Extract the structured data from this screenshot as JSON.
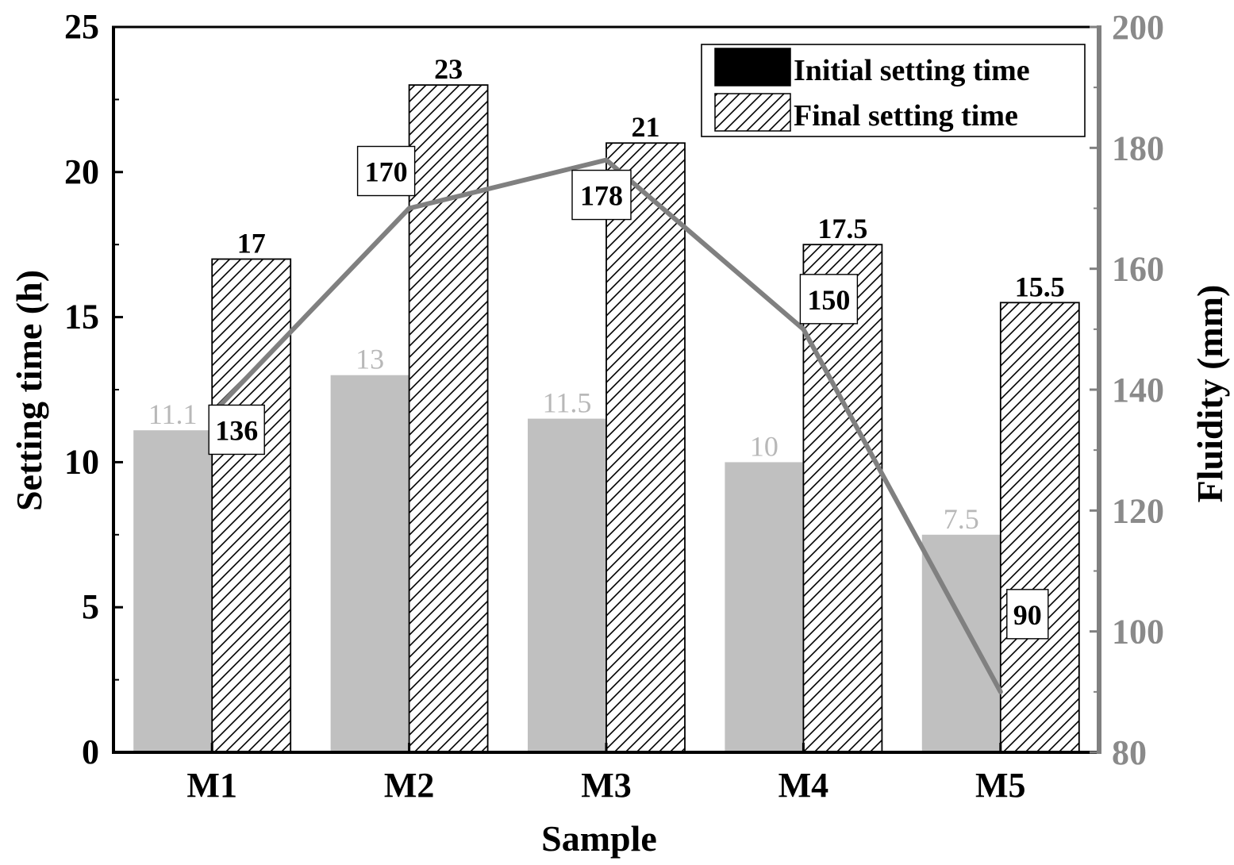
{
  "chart_data": {
    "type": "bar",
    "xlabel": "Sample",
    "ylabel": "Setting time (h)",
    "y2label": "Fluidity (mm)",
    "categories": [
      "M1",
      "M2",
      "M3",
      "M4",
      "M5"
    ],
    "ylim": [
      0,
      25
    ],
    "y2lim": [
      80,
      200
    ],
    "yticks": [
      0,
      5,
      10,
      15,
      20,
      25
    ],
    "y2ticks": [
      80,
      100,
      120,
      140,
      160,
      180,
      200
    ],
    "legend_position": "top-right",
    "series": [
      {
        "name": "Initial setting time",
        "kind": "bar",
        "axis": "left",
        "values": [
          11.1,
          13,
          11.5,
          10,
          7.5
        ],
        "labels": [
          "11.1",
          "13",
          "11.5",
          "10",
          "7.5"
        ],
        "fill": "#c0c0c0",
        "legend_swatch": "#000000",
        "label_color": "#b8b8b8"
      },
      {
        "name": "Final setting time",
        "kind": "bar",
        "axis": "left",
        "pattern": "hatched",
        "values": [
          17,
          23,
          21,
          17.5,
          15.5
        ],
        "labels": [
          "17",
          "23",
          "21",
          "17.5",
          "15.5"
        ],
        "label_color": "#000000"
      },
      {
        "kind": "line",
        "axis": "right",
        "values": [
          136,
          170,
          178,
          150,
          90
        ],
        "labels": [
          "136",
          "170",
          "178",
          "150",
          "90"
        ],
        "line_color": "#808080"
      }
    ],
    "colors": {
      "axis_left": "#000000",
      "axis_right": "#808080",
      "right_tick_label": "#8a8a8a"
    }
  }
}
